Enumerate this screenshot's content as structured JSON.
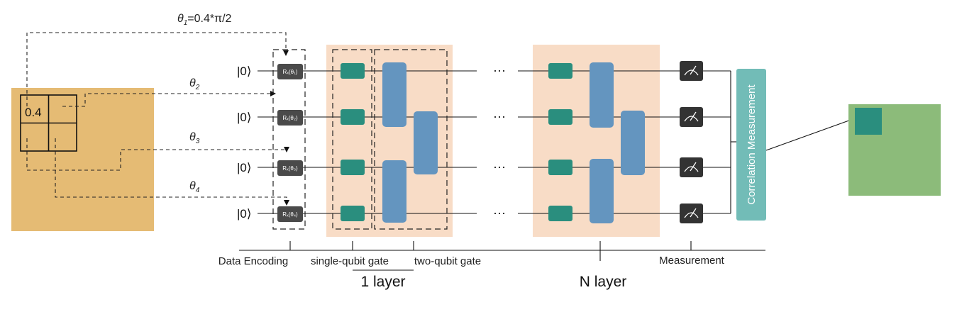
{
  "colors": {
    "input_image": "#e5bb74",
    "layer_bg": "#f8dcc6",
    "single_gate": "#2a8e7e",
    "two_gate": "#6495bf",
    "rx_gate": "#4a4a4a",
    "meter": "#333333",
    "correlation": "#72bcb7",
    "output_image": "#8cbb7a",
    "output_pixel": "#2a8e7e"
  },
  "input_image": {
    "pixel_value": "0.4"
  },
  "angles": [
    {
      "label": "θ",
      "sub": "1",
      "suffix": "=0.4*π/2"
    },
    {
      "label": "θ",
      "sub": "2",
      "suffix": ""
    },
    {
      "label": "θ",
      "sub": "3",
      "suffix": ""
    },
    {
      "label": "θ",
      "sub": "4",
      "suffix": ""
    }
  ],
  "qubits": [
    "|0⟩",
    "|0⟩",
    "|0⟩",
    "|0⟩"
  ],
  "rx_gates": [
    {
      "text": "Rₓ(θ₁)"
    },
    {
      "text": "Rₓ(θ₂)"
    },
    {
      "text": "Rₓ(θ₃)"
    },
    {
      "text": "Rₓ(θ₄)"
    }
  ],
  "ellipsis": "⋯",
  "correlation_label": "Correlation Measurement",
  "stage_labels": {
    "data_encoding": "Data Encoding",
    "single_qubit": "single-qubit gate",
    "two_qubit": "two-qubit gate",
    "measurement": "Measurement",
    "one_layer": "1 layer",
    "n_layer": "N layer"
  }
}
